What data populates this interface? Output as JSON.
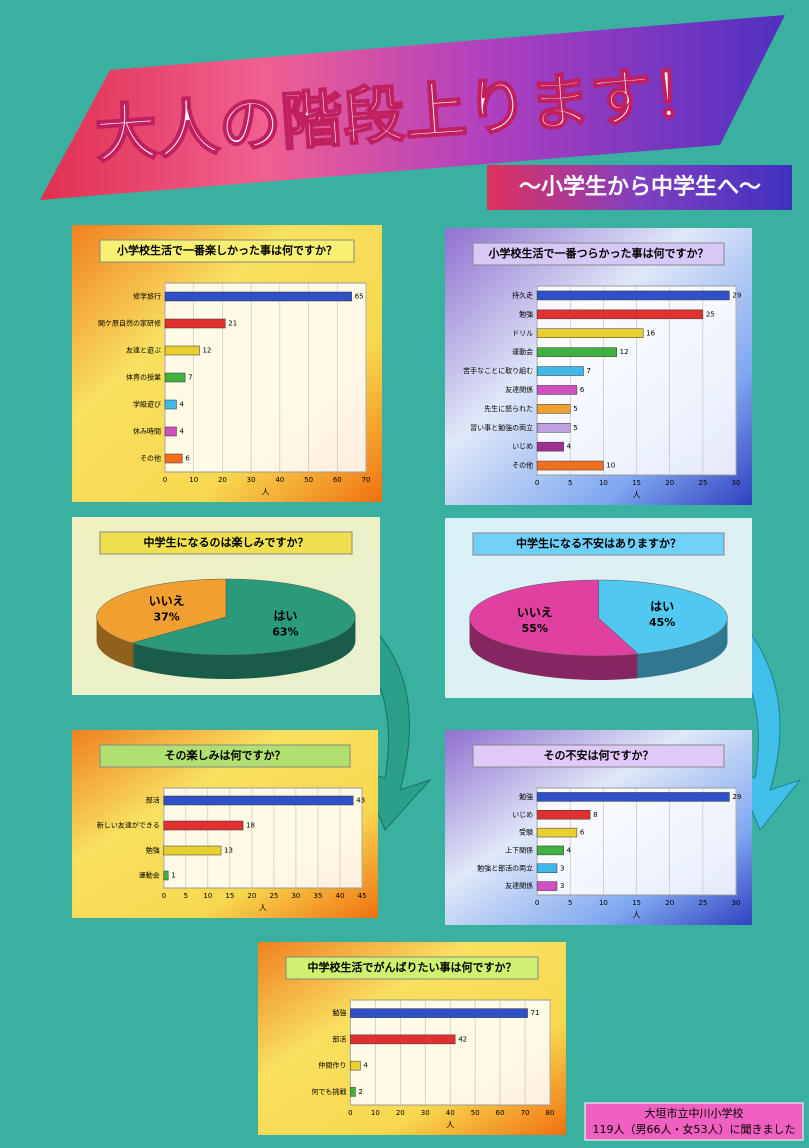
{
  "title": "大人の階段上ります！",
  "subtitle": "～小学生から中学生へ～",
  "footer": [
    "大垣市立中川小学校",
    "119人（男66人・女53人）に聞きました"
  ],
  "chart_data": [
    {
      "type": "bar",
      "title": "小学校生活で一番楽しかった事は何ですか？",
      "categories": [
        "修学旅行",
        "関ケ原自然の家研修",
        "友達と遊ぶ",
        "体育の授業",
        "学級遊び",
        "休み時間",
        "その他"
      ],
      "values": [
        65,
        21,
        12,
        7,
        4,
        4,
        6
      ],
      "colors": [
        "#3050c8",
        "#e03030",
        "#e8d030",
        "#40b040",
        "#40b8e8",
        "#d050c0",
        "#f07020"
      ],
      "xlim": [
        0,
        70
      ],
      "xticks": [
        0,
        10,
        20,
        30,
        40,
        50,
        60,
        70
      ],
      "xlabel": "人",
      "grid": true
    },
    {
      "type": "bar",
      "title": "小学校生活で一番つらかった事は何ですか？",
      "categories": [
        "持久走",
        "勉強",
        "ドリル",
        "運動会",
        "苦手なことに取り組む",
        "友達関係",
        "先生に怒られた",
        "習い事と勉強の両立",
        "いじめ",
        "その他"
      ],
      "values": [
        29,
        25,
        16,
        12,
        7,
        6,
        5,
        5,
        4,
        10
      ],
      "colors": [
        "#3050c8",
        "#e03030",
        "#e8d030",
        "#40b040",
        "#40b8e8",
        "#d050c0",
        "#f0a030",
        "#c0a0e0",
        "#a03090",
        "#f07020"
      ],
      "xlim": [
        0,
        30
      ],
      "xticks": [
        0,
        5,
        10,
        15,
        20,
        25,
        30
      ],
      "xlabel": "人",
      "grid": true
    },
    {
      "type": "pie",
      "title": "中学生になるのは楽しみですか？",
      "categories": [
        "はい",
        "いいえ"
      ],
      "values": [
        63,
        37
      ],
      "value_labels": [
        "63%",
        "37%"
      ],
      "colors": [
        "#2a9a7a",
        "#f0a030"
      ]
    },
    {
      "type": "pie",
      "title": "中学生になる不安はありますか？",
      "categories": [
        "はい",
        "いいえ"
      ],
      "values": [
        45,
        55
      ],
      "value_labels": [
        "45%",
        "55%"
      ],
      "colors": [
        "#50c8f0",
        "#e040a0"
      ]
    },
    {
      "type": "bar",
      "title": "その楽しみは何ですか？",
      "categories": [
        "部活",
        "新しい友達ができる",
        "勉強",
        "運動会"
      ],
      "values": [
        43,
        18,
        13,
        1
      ],
      "colors": [
        "#3050c8",
        "#e03030",
        "#e8d030",
        "#40b040"
      ],
      "xlim": [
        0,
        45
      ],
      "xticks": [
        0,
        5,
        10,
        15,
        20,
        25,
        30,
        35,
        40,
        45
      ],
      "xlabel": "人",
      "grid": true
    },
    {
      "type": "bar",
      "title": "その不安は何ですか？",
      "categories": [
        "勉強",
        "いじめ",
        "受験",
        "上下関係",
        "勉強と部活の両立",
        "友達関係"
      ],
      "values": [
        29,
        8,
        6,
        4,
        3,
        3
      ],
      "colors": [
        "#3050c8",
        "#e03030",
        "#e8d030",
        "#40b040",
        "#40b8e8",
        "#d050c0"
      ],
      "xlim": [
        0,
        30
      ],
      "xticks": [
        0,
        5,
        10,
        15,
        20,
        25,
        30
      ],
      "xlabel": "人",
      "grid": true
    },
    {
      "type": "bar",
      "title": "中学校生活でがんばりたい事は何ですか？",
      "categories": [
        "勉強",
        "部活",
        "仲間作り",
        "何でも挑戦"
      ],
      "values": [
        71,
        42,
        4,
        2
      ],
      "colors": [
        "#3050c8",
        "#e03030",
        "#e8d030",
        "#40b040"
      ],
      "xlim": [
        0,
        80
      ],
      "xticks": [
        0,
        10,
        20,
        30,
        40,
        50,
        60,
        70,
        80
      ],
      "xlabel": "人",
      "grid": true
    }
  ]
}
